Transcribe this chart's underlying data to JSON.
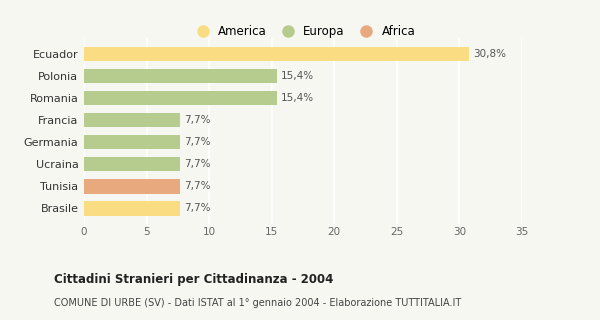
{
  "categories": [
    "Ecuador",
    "Polonia",
    "Romania",
    "Francia",
    "Germania",
    "Ucraina",
    "Tunisia",
    "Brasile"
  ],
  "values": [
    30.8,
    15.4,
    15.4,
    7.7,
    7.7,
    7.7,
    7.7,
    7.7
  ],
  "labels": [
    "30,8%",
    "15,4%",
    "15,4%",
    "7,7%",
    "7,7%",
    "7,7%",
    "7,7%",
    "7,7%"
  ],
  "colors": [
    "#FADC82",
    "#B5CC8E",
    "#B5CC8E",
    "#B5CC8E",
    "#B5CC8E",
    "#B5CC8E",
    "#E8A97E",
    "#FADC82"
  ],
  "legend": [
    {
      "label": "America",
      "color": "#FADC82"
    },
    {
      "label": "Europa",
      "color": "#B5CC8E"
    },
    {
      "label": "Africa",
      "color": "#E8A97E"
    }
  ],
  "xlim": [
    0,
    35
  ],
  "xticks": [
    0,
    5,
    10,
    15,
    20,
    25,
    30,
    35
  ],
  "title": "Cittadini Stranieri per Cittadinanza - 2004",
  "subtitle": "COMUNE DI URBE (SV) - Dati ISTAT al 1° gennaio 2004 - Elaborazione TUTTITALIA.IT",
  "background_color": "#F7F7F2",
  "bar_height": 0.65,
  "grid_color": "#FFFFFF"
}
